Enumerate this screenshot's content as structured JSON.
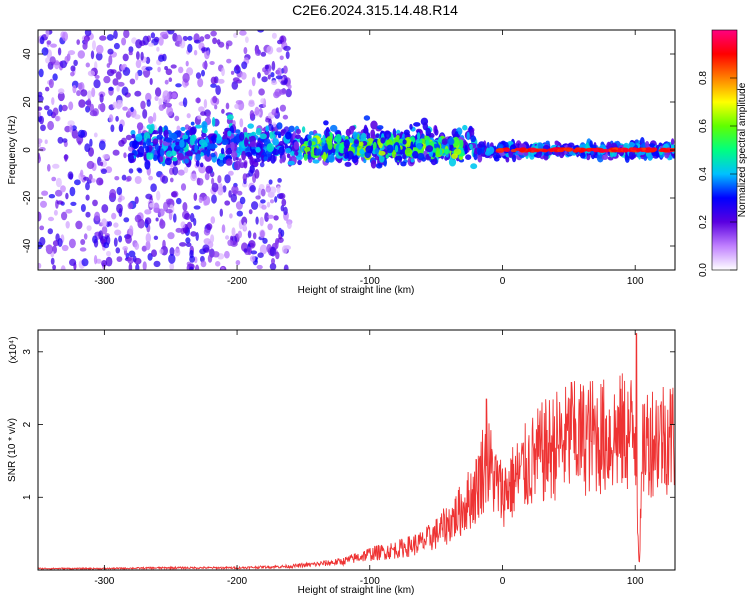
{
  "title": "C2E6.2024.315.14.48.R14",
  "chart_data": [
    {
      "type": "heatmap",
      "xlabel": "Height of straight line (km)",
      "ylabel": "Frequency (Hz)",
      "xlim": [
        -350,
        130
      ],
      "ylim": [
        -50,
        50
      ],
      "x_ticks": [
        -300,
        -200,
        -100,
        0,
        100
      ],
      "y_ticks": [
        -40,
        -20,
        0,
        20,
        40
      ],
      "colorbar": {
        "label": "Normalized spectral amplitude",
        "range": [
          0,
          1
        ],
        "ticks": [
          "0.0",
          "0.2",
          "0.4",
          "0.6",
          "0.8"
        ],
        "colors": [
          "#ffffff",
          "#c080ff",
          "#5a00e0",
          "#0000ff",
          "#00c0ff",
          "#00ff80",
          "#60ff00",
          "#ffff00",
          "#ff8000",
          "#ff0000",
          "#ff0080"
        ]
      },
      "features": [
        {
          "x_range": [
            -350,
            -160
          ],
          "freq_spread": 50,
          "amplitude": 0.15
        },
        {
          "x_range": [
            -280,
            -20
          ],
          "freq_center": 2,
          "freq_spread": 8,
          "amplitude": 0.3
        },
        {
          "x_range": [
            -150,
            -30
          ],
          "freq_center": 1,
          "freq_spread": 4,
          "amplitude": 0.45
        },
        {
          "x_range": [
            -20,
            130
          ],
          "freq_center": 0,
          "freq_spread": 3,
          "amplitude": 0.3
        },
        {
          "x_range": [
            -5,
            130
          ],
          "freq_center": 0,
          "freq_spread": 1,
          "amplitude": 0.95
        }
      ]
    },
    {
      "type": "line",
      "xlabel": "Height of straight line (km)",
      "ylabel": "SNR (10 * v/v)",
      "y_multiplier": "(x10⁴)",
      "xlim": [
        -350,
        130
      ],
      "ylim": [
        0,
        3.3
      ],
      "x_ticks": [
        -300,
        -200,
        -100,
        0,
        100
      ],
      "y_ticks": [
        1,
        2,
        3
      ],
      "color": "#ee3333",
      "series": [
        {
          "x": [
            -350,
            -300,
            -250,
            -200,
            -160,
            -140,
            -120,
            -100,
            -80,
            -60,
            -50,
            -40,
            -30,
            -20,
            -15,
            -10,
            -5,
            0,
            10,
            20,
            30,
            40,
            50,
            60,
            70,
            80,
            90,
            100,
            103,
            106,
            110,
            120,
            130
          ],
          "y": [
            0.02,
            0.02,
            0.03,
            0.03,
            0.05,
            0.08,
            0.12,
            0.22,
            0.28,
            0.38,
            0.5,
            0.65,
            0.85,
            1.1,
            1.4,
            1.45,
            1.2,
            1.05,
            1.25,
            1.45,
            1.6,
            1.72,
            1.78,
            1.82,
            1.85,
            1.82,
            1.88,
            1.9,
            0.05,
            1.75,
            1.8,
            1.85,
            1.85
          ]
        }
      ],
      "peaks": [
        {
          "x": -12,
          "y": 2.35
        },
        {
          "x": 52,
          "y": 2.58
        },
        {
          "x": 101,
          "y": 3.25
        }
      ]
    }
  ]
}
